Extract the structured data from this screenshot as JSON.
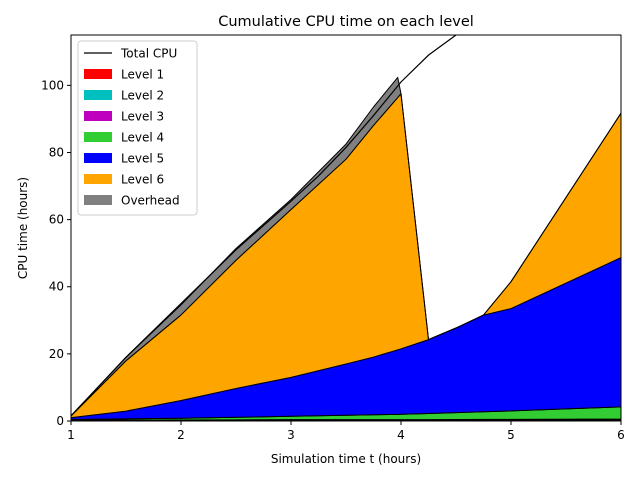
{
  "chart_data": {
    "type": "area",
    "title": "Cumulative CPU time on each level",
    "xlabel": "Simulation time t (hours)",
    "ylabel": "CPU time (hours)",
    "xlim": [
      1,
      6
    ],
    "ylim": [
      0,
      115
    ],
    "xticks": [
      1,
      2,
      3,
      4,
      5,
      6
    ],
    "yticks": [
      0,
      20,
      40,
      60,
      80,
      100
    ],
    "grid": false,
    "legend_position": "upper-left",
    "line_series": {
      "name": "Total CPU",
      "color": "#000000",
      "x": [
        1.0,
        1.5,
        2.0,
        2.5,
        3.0,
        3.25,
        3.5,
        3.75,
        4.0,
        4.25,
        4.5
      ],
      "y": [
        1.5,
        19.0,
        35.0,
        51.0,
        65.5,
        73.0,
        81.5,
        91.0,
        101.0,
        109.0,
        115.0
      ]
    },
    "stacked_series": [
      {
        "name": "Level 1",
        "color": "#ff0000",
        "x": [
          1.0,
          2.0,
          3.0,
          4.0,
          5.0,
          6.0
        ],
        "y": [
          0.1,
          0.1,
          0.2,
          0.2,
          0.3,
          0.3
        ]
      },
      {
        "name": "Level 2",
        "color": "#00bfbf",
        "x": [
          1.0,
          2.0,
          3.0,
          4.0,
          5.0,
          6.0
        ],
        "y": [
          0.1,
          0.1,
          0.1,
          0.1,
          0.1,
          0.2
        ]
      },
      {
        "name": "Level 3",
        "color": "#bf00bf",
        "x": [
          1.0,
          2.0,
          3.0,
          4.0,
          5.0,
          6.0
        ],
        "y": [
          0.1,
          0.1,
          0.1,
          0.1,
          0.1,
          0.1
        ]
      },
      {
        "name": "Level 4",
        "color": "#32cd32",
        "x": [
          1.0,
          2.0,
          3.0,
          4.0,
          5.0,
          6.0
        ],
        "y": [
          0.2,
          0.5,
          1.0,
          1.6,
          2.5,
          3.6
        ]
      },
      {
        "name": "Level 5",
        "color": "#0000ff",
        "x": [
          1.0,
          1.5,
          2.0,
          2.5,
          3.0,
          3.5,
          3.75,
          4.0,
          4.25,
          4.5,
          4.75,
          5.0,
          6.0
        ],
        "y": [
          0.5,
          2.3,
          5.3,
          8.6,
          11.6,
          15.3,
          17.2,
          19.5,
          22.0,
          25.2,
          28.8,
          30.5,
          44.5
        ]
      },
      {
        "name": "Level 6",
        "color": "#ffa500",
        "x": [
          1.0,
          1.5,
          2.0,
          2.5,
          3.0,
          3.5,
          3.75,
          4.0,
          4.25,
          4.5,
          4.75,
          5.0,
          6.0
        ],
        "y": [
          0.5,
          15.0,
          25.5,
          38.2,
          50.0,
          61.0,
          69.0,
          76.0,
          0.0,
          0.0,
          0.0,
          8.0,
          43.0
        ]
      },
      {
        "name": "Overhead",
        "color": "#808080",
        "x": [
          1.0,
          1.5,
          2.0,
          2.5,
          3.0,
          3.5,
          3.75,
          3.97,
          4.0,
          4.25,
          4.5,
          4.75,
          5.0,
          6.0
        ],
        "y": [
          0.1,
          1.0,
          3.0,
          3.5,
          3.0,
          4.5,
          5.5,
          6.0,
          0.0,
          0.0,
          0.0,
          0.0,
          0.0,
          0.0
        ]
      }
    ]
  }
}
